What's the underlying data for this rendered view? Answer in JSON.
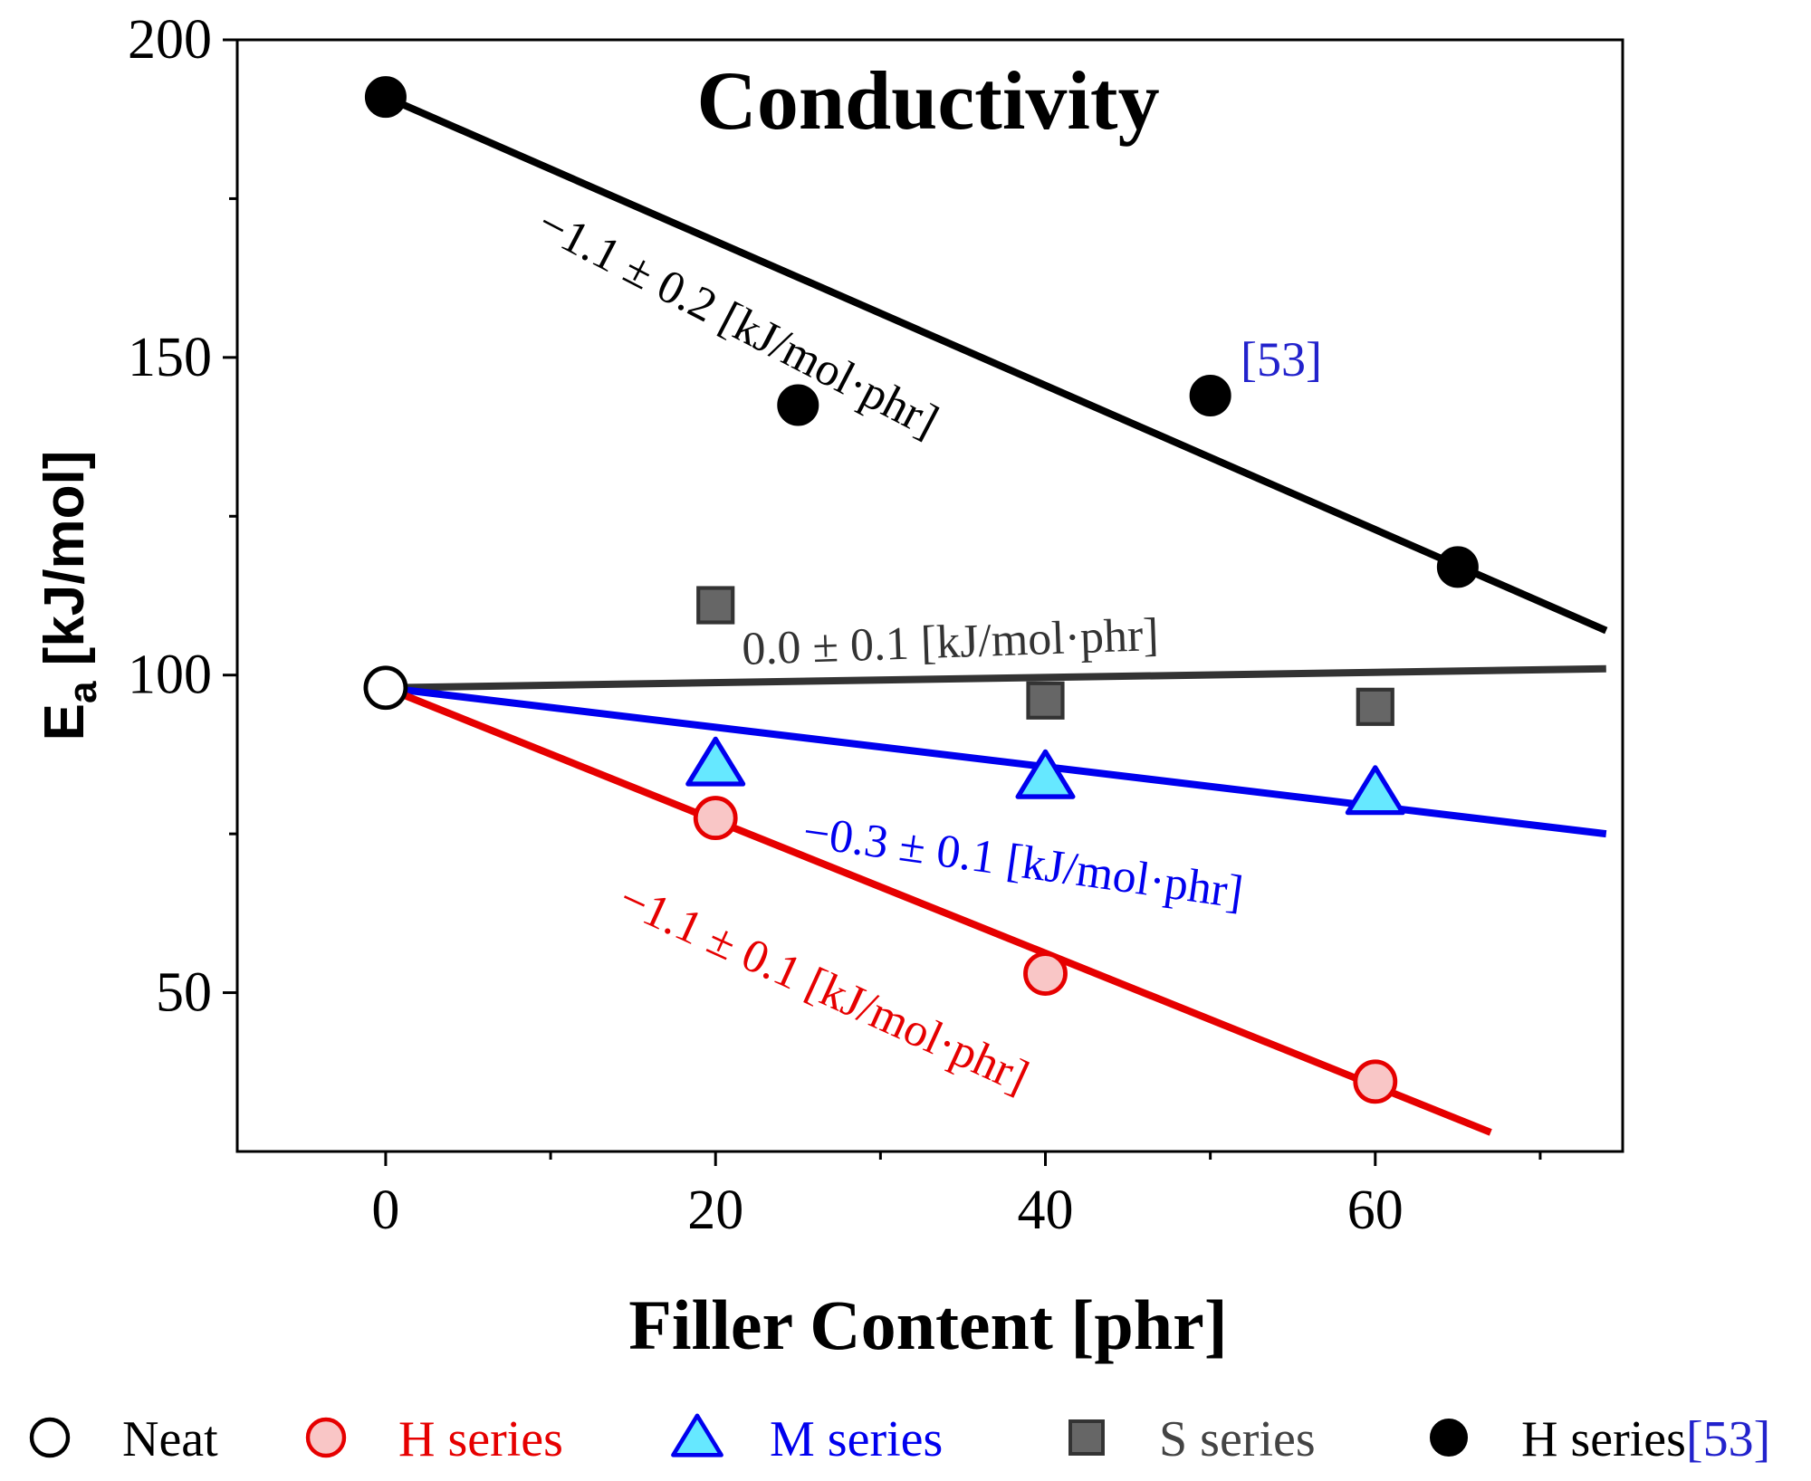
{
  "chart_data": {
    "type": "scatter",
    "title": "Conductivity",
    "xlabel": "Filler Content [phr]",
    "ylabel_main": "E",
    "ylabel_sub": "a",
    "ylabel_rest": " [kJ/mol]",
    "xlim": [
      -9,
      75
    ],
    "ylim": [
      25,
      200
    ],
    "xticks": [
      0,
      20,
      40,
      60
    ],
    "xtick_labels": [
      "0",
      "20",
      "40",
      "60"
    ],
    "xminor": [
      10,
      30,
      50,
      70
    ],
    "yticks": [
      50,
      100,
      150,
      200
    ],
    "ytick_labels": [
      "50",
      "100",
      "150",
      "200"
    ],
    "yminor": [
      75,
      125,
      175
    ],
    "series": [
      {
        "name": "Neat",
        "marker": "open-circle",
        "color": "#000000",
        "fill": "#ffffff",
        "points": [
          {
            "x": 0,
            "y": 98
          }
        ]
      },
      {
        "name": "H series",
        "marker": "circle",
        "color": "#e60000",
        "fill": "#f9c6c6",
        "points": [
          {
            "x": 20,
            "y": 77.5
          },
          {
            "x": 40,
            "y": 53
          },
          {
            "x": 60,
            "y": 36
          }
        ]
      },
      {
        "name": "M series",
        "marker": "triangle",
        "color": "#0000ee",
        "fill": "#66e8ff",
        "points": [
          {
            "x": 20,
            "y": 86
          },
          {
            "x": 40,
            "y": 84
          },
          {
            "x": 60,
            "y": 81.5
          }
        ]
      },
      {
        "name": "S series",
        "marker": "square",
        "color": "#333333",
        "fill": "#666666",
        "points": [
          {
            "x": 20,
            "y": 111
          },
          {
            "x": 40,
            "y": 96
          },
          {
            "x": 60,
            "y": 95
          }
        ]
      },
      {
        "name": "H series[53]",
        "marker": "filled-circle",
        "color": "#000000",
        "fill": "#000000",
        "points": [
          {
            "x": 0,
            "y": 191
          },
          {
            "x": 25,
            "y": 142.5
          },
          {
            "x": 50,
            "y": 144
          },
          {
            "x": 65,
            "y": 117
          }
        ]
      }
    ],
    "fits": [
      {
        "name": "H series[53] fit",
        "color": "#000000",
        "x0": 0,
        "y0": 191,
        "x1": 74,
        "y1": 107,
        "label": "−1.1 ± 0.2 [kJ/mol·phr]"
      },
      {
        "name": "S series fit",
        "color": "#333333",
        "x0": 0,
        "y0": 98,
        "x1": 74,
        "y1": 101,
        "label": "0.0 ± 0.1 [kJ/mol·phr]"
      },
      {
        "name": "M series fit",
        "color": "#0000ee",
        "x0": 0,
        "y0": 98,
        "x1": 74,
        "y1": 75,
        "label": "−0.3 ± 0.1 [kJ/mol·phr]"
      },
      {
        "name": "H series fit",
        "color": "#e60000",
        "x0": 0,
        "y0": 98,
        "x1": 67,
        "y1": 28,
        "label": "−1.1 ± 0.1 [kJ/mol·phr]"
      }
    ],
    "annotation": {
      "text": "[53]",
      "color": "#2222cc"
    },
    "legend": {
      "placement": "bottom",
      "items": [
        {
          "label": "Neat",
          "marker": "open-circle",
          "color": "#000000",
          "fill": "#ffffff",
          "text_color": "#000000"
        },
        {
          "label": "H series",
          "marker": "circle",
          "color": "#e60000",
          "fill": "#f9c6c6",
          "text_color": "#e60000"
        },
        {
          "label": "M series",
          "marker": "triangle",
          "color": "#0000ee",
          "fill": "#66e8ff",
          "text_color": "#0000ee"
        },
        {
          "label": "S series",
          "marker": "square",
          "color": "#333333",
          "fill": "#666666",
          "text_color": "#444444"
        },
        {
          "label": "H series",
          "suffix": "[53]",
          "marker": "filled-circle",
          "color": "#000000",
          "fill": "#000000",
          "text_color": "#000000",
          "suffix_color": "#2222cc"
        }
      ]
    }
  }
}
